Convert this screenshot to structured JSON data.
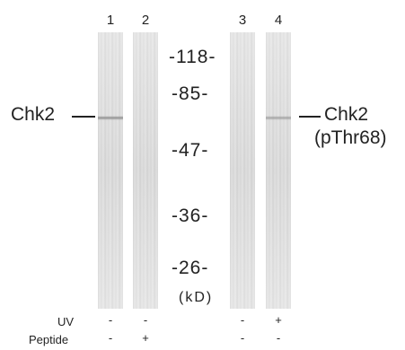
{
  "lanes": [
    {
      "number": "1",
      "uv": "-",
      "peptide": "-"
    },
    {
      "number": "2",
      "uv": "-",
      "peptide": "+"
    },
    {
      "number": "3",
      "uv": "-",
      "peptide": "-"
    },
    {
      "number": "4",
      "uv": "+",
      "peptide": "-"
    }
  ],
  "markers": [
    "-118-",
    "-85-",
    "-47-",
    "-36-",
    "-26-"
  ],
  "unit": "(kD)",
  "left_label": "Chk2",
  "right_label": {
    "line1": "Chk2",
    "line2": "(pThr68)"
  },
  "row_labels": {
    "uv": "UV",
    "peptide": "Peptide"
  }
}
